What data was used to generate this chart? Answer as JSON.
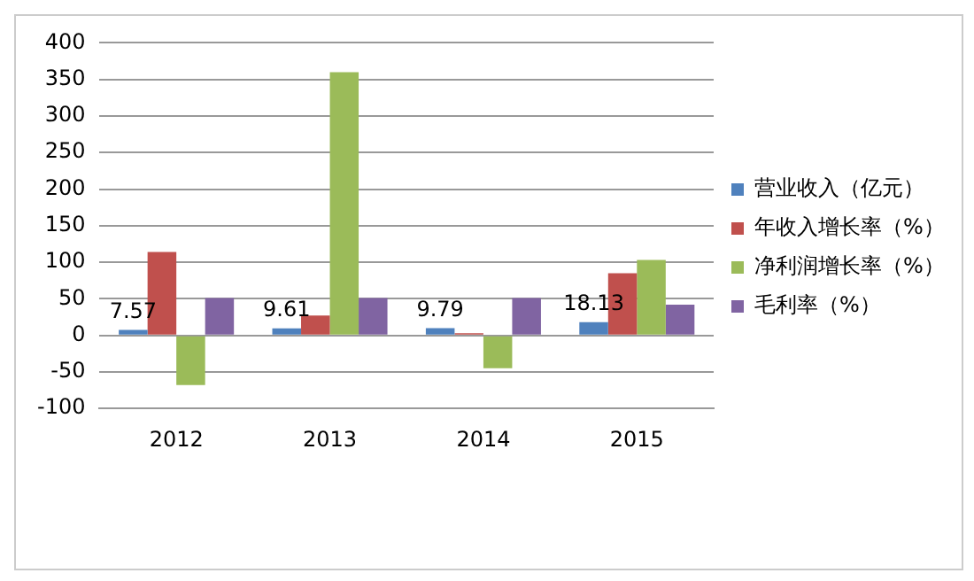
{
  "chart_data": {
    "type": "bar",
    "categories": [
      "2012",
      "2013",
      "2014",
      "2015"
    ],
    "series": [
      {
        "name": "营业收入（亿元）",
        "color": "#4f81bd",
        "values": [
          7.57,
          9.61,
          9.79,
          18.13
        ],
        "value_labels": [
          "7.57",
          "9.61",
          "9.79",
          "18.13"
        ]
      },
      {
        "name": "年收入增长率（%）",
        "color": "#c0504d",
        "values": [
          114,
          27,
          3,
          85
        ]
      },
      {
        "name": "净利润增长率（%）",
        "color": "#9bbb59",
        "values": [
          -68,
          360,
          -45,
          103
        ]
      },
      {
        "name": "毛利率（%）",
        "color": "#8064a2",
        "values": [
          51,
          51,
          51,
          42
        ]
      }
    ],
    "ylim": [
      -100,
      400
    ],
    "yticks": [
      -100,
      -50,
      0,
      50,
      100,
      150,
      200,
      250,
      300,
      350,
      400
    ],
    "grid": "y",
    "legend": "right"
  }
}
